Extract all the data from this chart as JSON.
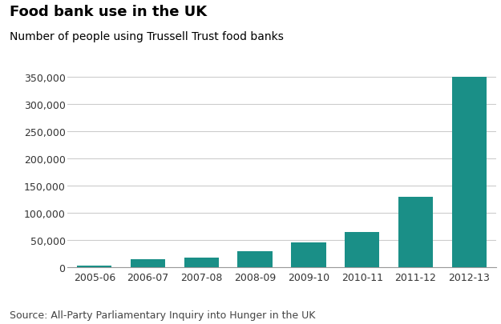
{
  "title": "Food bank use in the UK",
  "subtitle": "Number of people using Trussell Trust food banks",
  "source": "Source: All-Party Parliamentary Inquiry into Hunger in the UK",
  "categories": [
    "2005-06",
    "2006-07",
    "2007-08",
    "2008-09",
    "2009-10",
    "2010-11",
    "2011-12",
    "2012-13"
  ],
  "values": [
    2814,
    14322,
    17436,
    30000,
    46000,
    65000,
    130000,
    350000
  ],
  "bar_color": "#1a8f87",
  "background_color": "#ffffff",
  "ylim": [
    0,
    370000
  ],
  "yticks": [
    0,
    50000,
    100000,
    150000,
    200000,
    250000,
    300000,
    350000
  ],
  "title_fontsize": 13,
  "subtitle_fontsize": 10,
  "source_fontsize": 9,
  "tick_fontsize": 9,
  "grid_color": "#cccccc",
  "title_color": "#000000",
  "subtitle_color": "#000000",
  "source_color": "#444444"
}
